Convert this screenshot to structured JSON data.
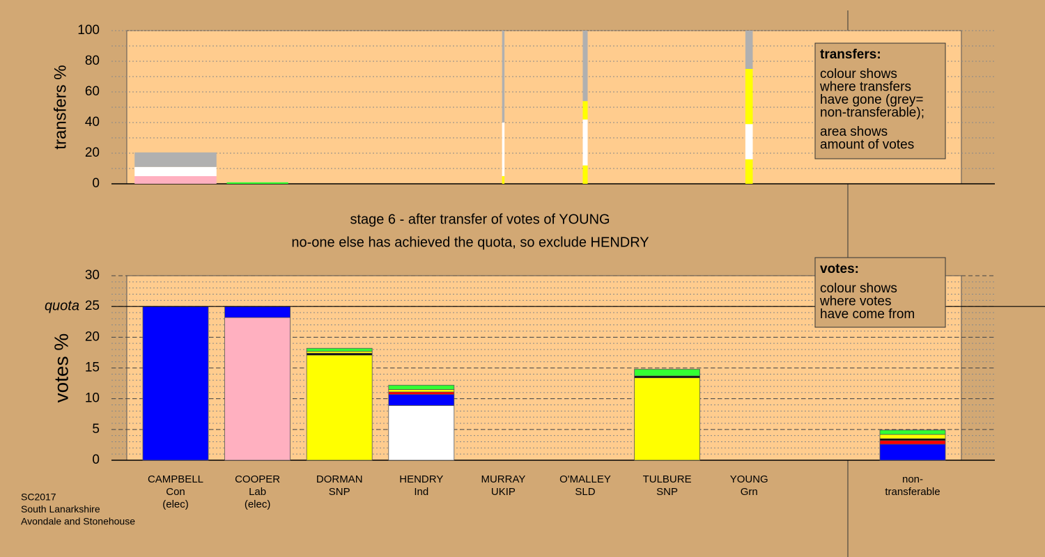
{
  "chart_data": [
    {
      "type": "stacked_bar",
      "y_label": "transfers %",
      "ylim": [
        0,
        100
      ],
      "yticks": [
        0,
        20,
        40,
        60,
        80,
        100
      ],
      "minor_grid_step": 10,
      "widths": [
        1.0,
        0.75,
        0,
        0,
        0.03,
        0.06,
        0,
        0.09,
        0
      ],
      "series": [
        {
          "color": "#ffff00",
          "values": [
            null,
            null,
            null,
            null,
            5,
            12,
            null,
            16,
            null
          ]
        },
        {
          "color": "#ffb0c0",
          "values": [
            5,
            null,
            null,
            null,
            null,
            null,
            null,
            null,
            null
          ]
        },
        {
          "color": "#ffffff",
          "values": [
            6,
            null,
            null,
            null,
            35,
            30,
            null,
            23,
            null
          ]
        },
        {
          "color": "#ffff00",
          "values": [
            null,
            null,
            null,
            null,
            null,
            12,
            null,
            36,
            null
          ]
        },
        {
          "color": "#33ff33",
          "values": [
            null,
            1,
            null,
            null,
            null,
            null,
            null,
            null,
            null
          ]
        },
        {
          "color": "#b0b0b0",
          "values": [
            9.5,
            null,
            null,
            null,
            60,
            46,
            null,
            25,
            null
          ]
        }
      ],
      "legend_title": "transfers:",
      "legend_lines": [
        "colour shows",
        "where transfers",
        "have gone (grey=",
        "non-transferable);",
        "area shows",
        "amount of votes"
      ]
    },
    {
      "type": "stacked_bar",
      "y_label": "votes %",
      "ylim": [
        0,
        30
      ],
      "yticks": [
        0,
        5,
        10,
        15,
        20,
        25,
        30
      ],
      "minor_grid_step": 1,
      "quota": 25,
      "quota_label": "quota",
      "categories": [
        [
          "CAMPBELL",
          "Con",
          "(elec)"
        ],
        [
          "COOPER",
          "Lab",
          "(elec)"
        ],
        [
          "DORMAN",
          "SNP"
        ],
        [
          "HENDRY",
          "Ind"
        ],
        [
          "MURRAY",
          "UKIP"
        ],
        [
          "O'MALLEY",
          "SLD"
        ],
        [
          "TULBURE",
          "SNP"
        ],
        [
          "YOUNG",
          "Grn"
        ],
        [
          "non-",
          "transferable"
        ]
      ],
      "series": [
        {
          "color": "#ffff00",
          "values": [
            null,
            null,
            17.1,
            null,
            null,
            null,
            13.4,
            null,
            null
          ]
        },
        {
          "color": "#ffffff",
          "values": [
            null,
            null,
            null,
            8.9,
            null,
            null,
            null,
            null,
            null
          ]
        },
        {
          "color": "#ffb0c0",
          "values": [
            null,
            23.2,
            null,
            null,
            null,
            null,
            null,
            null,
            null
          ]
        },
        {
          "color": "#0000ff",
          "values": [
            25,
            1.8,
            null,
            1.8,
            null,
            null,
            null,
            null,
            2.6
          ]
        },
        {
          "color": "#ff0000",
          "values": [
            null,
            null,
            null,
            0.4,
            null,
            null,
            null,
            null,
            0.6
          ]
        },
        {
          "color": "#000000",
          "values": [
            null,
            null,
            0.3,
            null,
            null,
            null,
            0.3,
            null,
            0.3
          ]
        },
        {
          "color": "#ffff00",
          "values": [
            null,
            null,
            0.3,
            0.4,
            null,
            null,
            null,
            null,
            0.7
          ]
        },
        {
          "color": "#33ff33",
          "values": [
            null,
            null,
            0.5,
            0.7,
            null,
            null,
            1.1,
            null,
            0.7
          ]
        }
      ],
      "legend_title": "votes:",
      "legend_lines": [
        "colour shows",
        "where votes",
        "have come from"
      ]
    }
  ],
  "stage_text": "stage 6 - after transfer of votes of YOUNG",
  "action_text": "no-one else has achieved the quota, so exclude HENDRY",
  "footer": [
    "SC2017",
    "South Lanarkshire",
    "Avondale and Stonehouse"
  ]
}
